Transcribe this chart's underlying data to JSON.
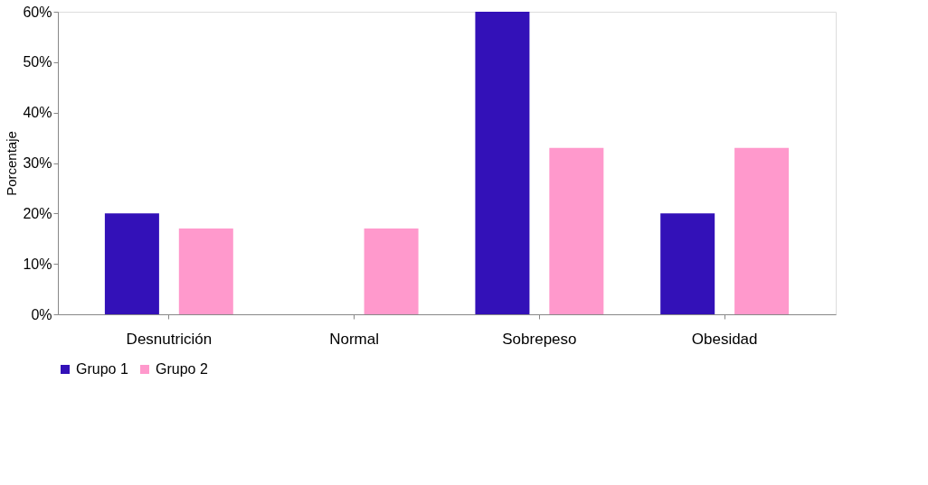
{
  "chart_data": {
    "type": "bar",
    "ylabel": "Porcentaje",
    "categories": [
      "Desnutrición",
      "Normal",
      "Sobrepeso",
      "Obesidad"
    ],
    "series": [
      {
        "name": "Grupo 1",
        "color": "#3311b8",
        "values": [
          20,
          0,
          60,
          20
        ]
      },
      {
        "name": "Grupo 2",
        "color": "#ff99cc",
        "values": [
          17,
          17,
          33,
          33
        ]
      }
    ],
    "ylim": [
      0,
      60
    ],
    "yticks": [
      {
        "value": 0,
        "label": "0%"
      },
      {
        "value": 10,
        "label": "10%"
      },
      {
        "value": 20,
        "label": "20%"
      },
      {
        "value": 30,
        "label": "30%"
      },
      {
        "value": 40,
        "label": "40%"
      },
      {
        "value": 50,
        "label": "50%"
      },
      {
        "value": 60,
        "label": "60%"
      }
    ],
    "grid": false,
    "legend": "bottom"
  }
}
